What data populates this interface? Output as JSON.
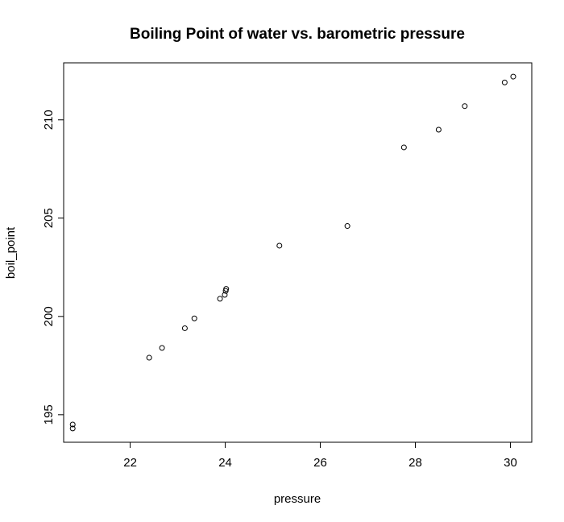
{
  "chart_data": {
    "type": "scatter",
    "title": "Boiling Point of water vs. barometric pressure",
    "xlabel": "pressure",
    "ylabel": "boil_point",
    "xlim": [
      20.6,
      30.45
    ],
    "ylim": [
      193.6,
      212.9
    ],
    "x_ticks": [
      22,
      24,
      26,
      28,
      30
    ],
    "y_ticks": [
      195,
      200,
      205,
      210
    ],
    "grid": false,
    "legend": "none",
    "marker": "open-circle",
    "x": [
      20.79,
      20.79,
      22.4,
      22.67,
      23.15,
      23.35,
      23.89,
      23.99,
      24.02,
      24.01,
      25.14,
      26.57,
      27.76,
      28.49,
      29.04,
      29.88,
      30.06
    ],
    "y": [
      194.5,
      194.3,
      197.9,
      198.4,
      199.4,
      199.9,
      200.9,
      201.1,
      201.4,
      201.3,
      203.6,
      204.6,
      208.6,
      209.5,
      210.7,
      211.9,
      212.2
    ]
  }
}
